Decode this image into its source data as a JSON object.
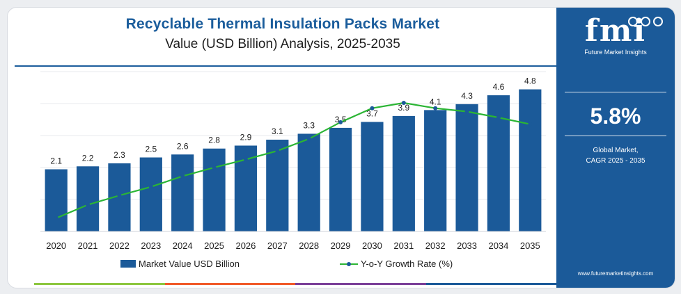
{
  "header": {
    "title": "Recyclable Thermal Insulation Packs Market",
    "subtitle": "Value (USD Billion) Analysis, 2025-2035"
  },
  "panel": {
    "logo_text": "fmi",
    "logo_subtitle": "Future Market Insights",
    "cagr_value": "5.8%",
    "cagr_label_line1": "Global Market,",
    "cagr_label_line2": "CAGR 2025 - 2035",
    "website": "www.futuremarketinsights.com"
  },
  "colors": {
    "bar": "#1b5a99",
    "line": "#2bb534",
    "title": "#1b5d9c",
    "panel": "#1b5a99",
    "strip": [
      "#8dc63f",
      "#f15a29",
      "#7b3f98",
      "#1b5a99"
    ]
  },
  "chart_data": {
    "type": "bar",
    "categories": [
      "2020",
      "2021",
      "2022",
      "2023",
      "2024",
      "2025",
      "2026",
      "2027",
      "2028",
      "2029",
      "2030",
      "2031",
      "2032",
      "2033",
      "2034",
      "2035"
    ],
    "series": [
      {
        "name": "Market Value USD Billion",
        "type": "bar",
        "values": [
          2.1,
          2.2,
          2.3,
          2.5,
          2.6,
          2.8,
          2.9,
          3.1,
          3.3,
          3.5,
          3.7,
          3.9,
          4.1,
          4.3,
          4.6,
          4.8
        ],
        "labels": [
          "2.1",
          "2.2",
          "2.3",
          "2.5",
          "2.6",
          "2.8",
          "2.9",
          "3.1",
          "3.3",
          "3.5",
          "3.7",
          "3.9",
          "4.1",
          "4.3",
          "4.6",
          "4.8"
        ]
      },
      {
        "name": "Y-o-Y Growth Rate (%)",
        "type": "line",
        "values": [
          2.0,
          4.0,
          5.4,
          6.7,
          8.3,
          9.6,
          10.8,
          12.1,
          13.9,
          16.4,
          18.5,
          19.3,
          18.5,
          18.0,
          17.1,
          16.1
        ]
      }
    ],
    "ylim": [
      0,
      5.4
    ],
    "y2lim": [
      0,
      24
    ],
    "grid": true,
    "legend_position": "bottom"
  }
}
